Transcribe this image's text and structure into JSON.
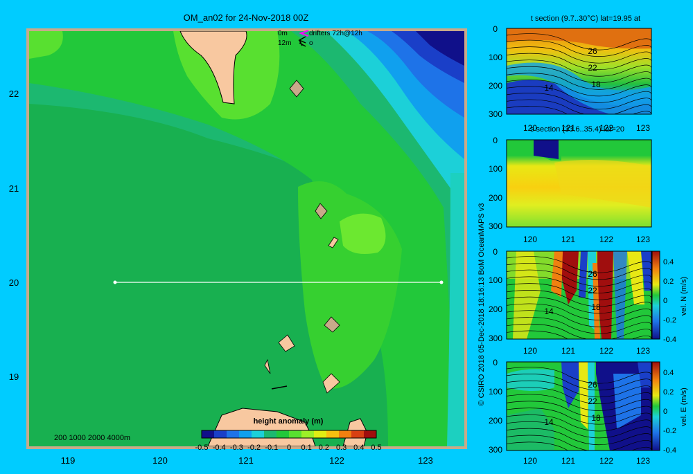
{
  "main_map": {
    "title": "OM_an02 for 24-Nov-2018 00Z",
    "x_ticks": [
      "119",
      "120",
      "121",
      "122",
      "123"
    ],
    "y_ticks": [
      "22",
      "21",
      "20",
      "19"
    ],
    "legend": {
      "line1_depth": "0m",
      "line1_label": "drifters 72h@12h",
      "line2_depth": "12m",
      "line2_label": "o"
    },
    "bathymetry_legend": "200  1000  2000  4000m",
    "colorbar": {
      "label": "height anomaly (m)",
      "ticks": [
        "-0.5",
        "-0.4",
        "-0.3",
        "-0.2",
        "-0.1",
        "0",
        "0.1",
        "0.2",
        "0.3",
        "0.4",
        "0.5"
      ],
      "colors": [
        "#10108a",
        "#1a3fc8",
        "#1e73e8",
        "#10a0ee",
        "#1cd0d8",
        "#1cb870",
        "#22c83a",
        "#58e030",
        "#9cf028",
        "#e0ee14",
        "#f8c010",
        "#f08010",
        "#d84012",
        "#a00e0e"
      ]
    }
  },
  "panels": {
    "t_section": {
      "title": "t section (9.7..30°C) lat=19.95 at",
      "y_ticks": [
        "0",
        "100",
        "200",
        "300"
      ],
      "x_ticks": [
        "120",
        "121",
        "122",
        "123"
      ],
      "contour_labels": [
        "26",
        "22",
        "18",
        "14"
      ]
    },
    "s_section": {
      "title": "s section (33.6..35.4) lat=20",
      "y_ticks": [
        "0",
        "100",
        "200",
        "300"
      ],
      "x_ticks": [
        "120",
        "121",
        "122",
        "123"
      ]
    },
    "vel_n": {
      "y_ticks": [
        "0",
        "100",
        "200",
        "300"
      ],
      "x_ticks": [
        "120",
        "121",
        "122",
        "123"
      ],
      "contour_labels": [
        "26",
        "22",
        "18",
        "14"
      ],
      "colorbar_ticks": [
        "0.4",
        "0.2",
        "0",
        "-0.2",
        "-0.4"
      ],
      "colorbar_label": "vel. N (m/s)"
    },
    "vel_e": {
      "y_ticks": [
        "0",
        "100",
        "200",
        "300"
      ],
      "x_ticks": [
        "120",
        "121",
        "122",
        "123"
      ],
      "contour_labels": [
        "26",
        "22",
        "18",
        "14"
      ],
      "colorbar_ticks": [
        "0.4",
        "0.2",
        "0",
        "-0.2",
        "-0.4"
      ],
      "colorbar_label": "vel. E (m/s)"
    }
  },
  "vertical_credit": "© CSIRO 2018   05-Dec-2018 18:16:13 BoM OceanMAPS v3"
}
